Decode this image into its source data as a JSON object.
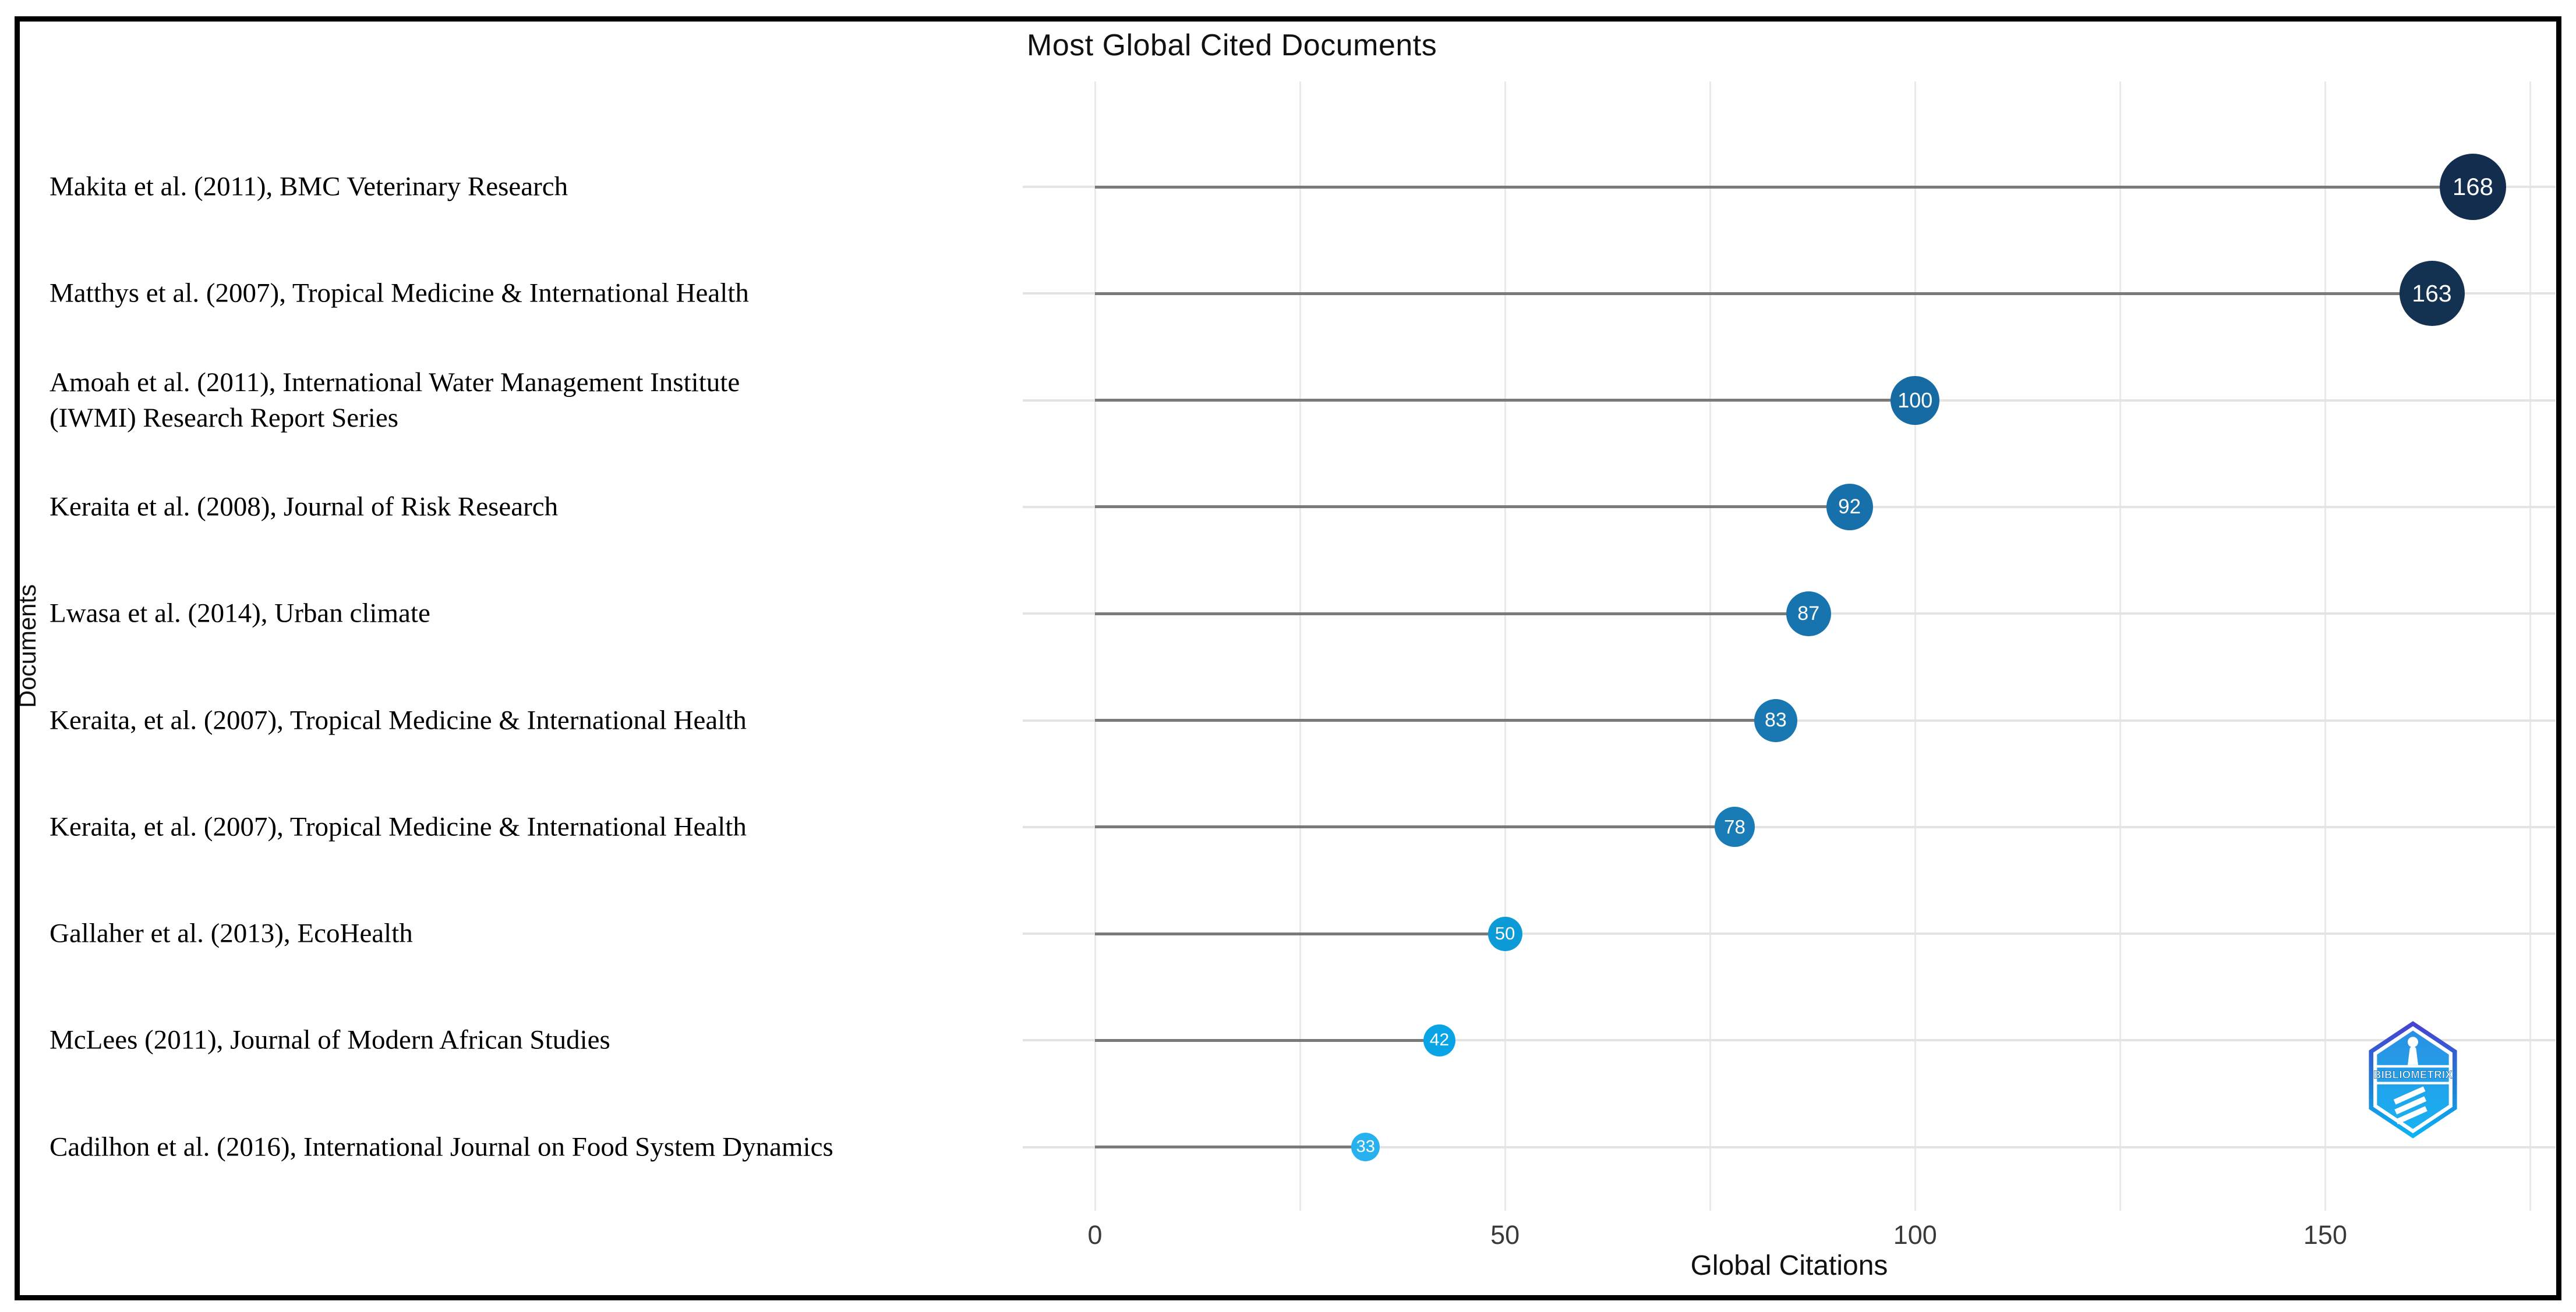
{
  "page": {
    "background": "#ffffff",
    "frame_color": "#000000"
  },
  "chart_data": {
    "type": "scatter",
    "variant": "horizontal-lollipop",
    "title": "Most Global Cited Documents",
    "xlabel": "Global Citations",
    "ylabel": "Documents",
    "xlim": [
      0,
      178
    ],
    "xticks": [
      "0",
      "50",
      "100",
      "150"
    ],
    "minor_grid_step": 25,
    "grid": true,
    "legend": "none",
    "stem_color": "#7a7a7a",
    "grid_color": "#e9e9e9",
    "row_line_color": "#e4e4e4",
    "value_label_color": "#ffffff",
    "points": [
      {
        "label": "Makita et al. (2011), BMC Veterinary Research",
        "value": 168,
        "color": "#122d4d",
        "diameter": 114,
        "value_font": 42
      },
      {
        "label": "Matthys et al. (2007), Tropical Medicine & International Health",
        "value": 163,
        "color": "#133150",
        "diameter": 112,
        "value_font": 41
      },
      {
        "label": "Amoah et al. (2011), International Water Management Institute\n(IWMI) Research Report Series",
        "value": 100,
        "color": "#166ba3",
        "diameter": 84,
        "value_font": 36
      },
      {
        "label": "Keraita et al. (2008), Journal of Risk Research",
        "value": 92,
        "color": "#1770a9",
        "diameter": 80,
        "value_font": 35
      },
      {
        "label": "Lwasa et al. (2014), Urban climate",
        "value": 87,
        "color": "#1874ae",
        "diameter": 77,
        "value_font": 34
      },
      {
        "label": "Keraita, et al.  (2007), Tropical Medicine & International Health",
        "value": 83,
        "color": "#1977b2",
        "diameter": 74,
        "value_font": 34
      },
      {
        "label": "Keraita, et al.  (2007), Tropical Medicine & International Health",
        "value": 78,
        "color": "#1a7cb7",
        "diameter": 69,
        "value_font": 33
      },
      {
        "label": "Gallaher et al. (2013), EcoHealth",
        "value": 50,
        "color": "#0d9bd8",
        "diameter": 59,
        "value_font": 31
      },
      {
        "label": "McLees (2011), Journal of Modern African Studies",
        "value": 42,
        "color": "#09a4e5",
        "diameter": 55,
        "value_font": 30
      },
      {
        "label": "Cadilhon et al.  (2016), International Journal on Food System Dynamics",
        "value": 33,
        "color": "#27b2ef",
        "diameter": 49,
        "value_font": 29
      }
    ]
  },
  "logo": {
    "text": "BIBLIOMETRIX",
    "gradient_top": "#4a3fd0",
    "gradient_mid": "#1d7fd6",
    "gradient_bottom": "#0cb5f6",
    "inner_fill_top": "#2b8fe2",
    "inner_fill_bottom": "#18b2f2"
  }
}
